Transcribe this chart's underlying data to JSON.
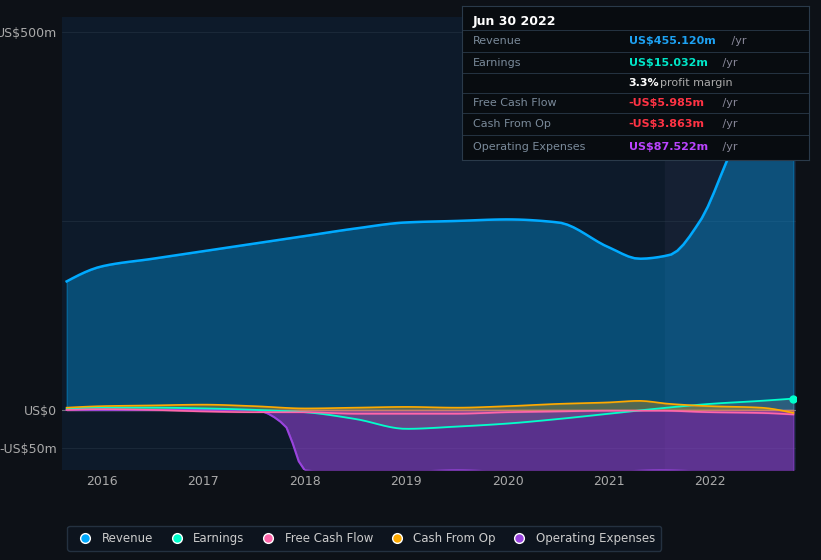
{
  "bg_color": "#0d1117",
  "plot_bg_color": "#0d1a2a",
  "highlight_bg": "#152033",
  "title_date": "Jun 30 2022",
  "ylabel_top": "US$500m",
  "ylabel_zero": "US$0",
  "ylabel_neg": "-US$50m",
  "revenue_color": "#00aaff",
  "earnings_color": "#00ffcc",
  "free_cash_flow_color": "#ff66aa",
  "cash_from_op_color": "#ffaa00",
  "operating_expenses_color": "#9944dd",
  "highlight_x_start": 2021.55,
  "highlight_x_end": 2022.85,
  "ylim": [
    -80,
    520
  ],
  "xlim": [
    2015.6,
    2022.85
  ],
  "row_data": [
    [
      "Revenue",
      "US$455.120m",
      " /yr",
      "#1da1f2"
    ],
    [
      "Earnings",
      "US$15.032m",
      " /yr",
      "#00e6c8"
    ],
    [
      "",
      "3.3%",
      " profit margin",
      "#ffffff"
    ],
    [
      "Free Cash Flow",
      "-US$5.985m",
      " /yr",
      "#ff3344"
    ],
    [
      "Cash From Op",
      "-US$3.863m",
      " /yr",
      "#ff3344"
    ],
    [
      "Operating Expenses",
      "US$87.522m",
      " /yr",
      "#bb44ff"
    ]
  ]
}
